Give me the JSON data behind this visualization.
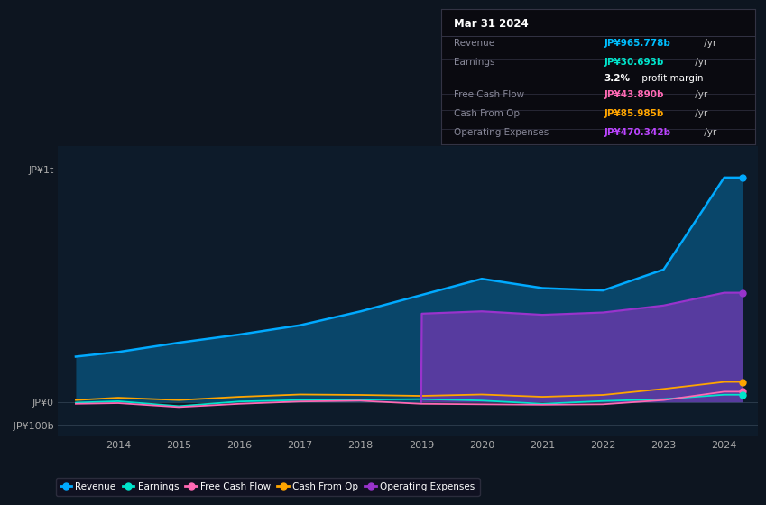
{
  "background_color": "#0d1520",
  "plot_bg_color": "#0d1b2a",
  "info_box_bg": "#0a0a10",
  "info_box_border": "#333344",
  "title": "Mar 31 2024",
  "info_rows": [
    {
      "label": "Revenue",
      "value": "JP¥965.778b",
      "unit": " /yr",
      "color": "#00bfff"
    },
    {
      "label": "Earnings",
      "value": "JP¥30.693b",
      "unit": " /yr",
      "color": "#00e5cc"
    },
    {
      "label": "",
      "value": "3.2%",
      "unit": " profit margin",
      "color": "#ffffff"
    },
    {
      "label": "Free Cash Flow",
      "value": "JP¥43.890b",
      "unit": " /yr",
      "color": "#ff69b4"
    },
    {
      "label": "Cash From Op",
      "value": "JP¥85.985b",
      "unit": " /yr",
      "color": "#ffa500"
    },
    {
      "label": "Operating Expenses",
      "value": "JP¥470.342b",
      "unit": " /yr",
      "color": "#bb44ff"
    }
  ],
  "years": [
    2013.3,
    2014,
    2015,
    2016,
    2017,
    2018,
    2019,
    2020,
    2021,
    2022,
    2023,
    2024,
    2024.3
  ],
  "revenue": [
    195,
    215,
    255,
    290,
    330,
    390,
    460,
    530,
    490,
    480,
    570,
    966,
    966
  ],
  "earnings": [
    -3,
    3,
    -18,
    2,
    8,
    10,
    12,
    6,
    -8,
    4,
    12,
    31,
    31
  ],
  "free_cash": [
    -8,
    -5,
    -22,
    -8,
    2,
    5,
    -8,
    -10,
    -12,
    -10,
    8,
    44,
    44
  ],
  "cash_from_op": [
    8,
    18,
    8,
    22,
    32,
    30,
    26,
    32,
    22,
    30,
    56,
    86,
    86
  ],
  "op_expenses_years": [
    2019,
    2019.01,
    2020,
    2021,
    2022,
    2023,
    2024,
    2024.3
  ],
  "op_expenses": [
    0,
    380,
    390,
    375,
    385,
    415,
    470,
    470
  ],
  "ylim": [
    -150,
    1100
  ],
  "y_ticks": [
    -100,
    0,
    1000
  ],
  "y_tick_labels": [
    "-JP¥100b",
    "JP¥0",
    "JP¥1t"
  ],
  "x_ticks": [
    2014,
    2015,
    2016,
    2017,
    2018,
    2019,
    2020,
    2021,
    2022,
    2023,
    2024
  ],
  "xlim": [
    2013.0,
    2024.55
  ],
  "colors": {
    "revenue": "#00aaff",
    "earnings": "#00e5cc",
    "free_cash": "#ff69b4",
    "cash_from_op": "#ffa500",
    "op_expenses": "#9933cc"
  },
  "legend": [
    {
      "label": "Revenue",
      "color": "#00aaff"
    },
    {
      "label": "Earnings",
      "color": "#00e5cc"
    },
    {
      "label": "Free Cash Flow",
      "color": "#ff69b4"
    },
    {
      "label": "Cash From Op",
      "color": "#ffa500"
    },
    {
      "label": "Operating Expenses",
      "color": "#9933cc"
    }
  ]
}
